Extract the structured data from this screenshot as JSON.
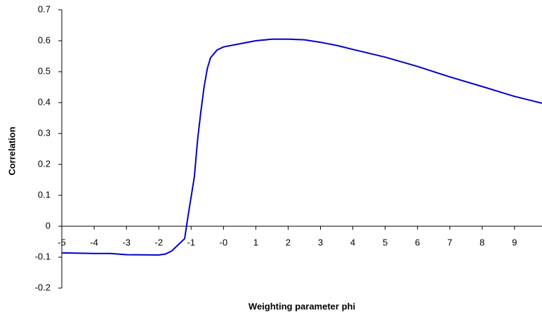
{
  "chart_data": {
    "type": "line",
    "x_label": "Weighting parameter phi",
    "y_label": "Correlation",
    "series": [
      {
        "name": "Correlation",
        "color": "#0000cc",
        "x": [
          -5,
          -4,
          -3.5,
          -3,
          -2,
          -1.8,
          -1.6,
          -1.4,
          -1.2,
          -1.1,
          -1,
          -0.9,
          -0.8,
          -0.7,
          -0.6,
          -0.5,
          -0.4,
          -0.2,
          0,
          0.5,
          1,
          1.5,
          2,
          2.5,
          3,
          3.5,
          4,
          5,
          6,
          7,
          8,
          9,
          9.85
        ],
        "values": [
          -0.086,
          -0.088,
          -0.088,
          -0.092,
          -0.093,
          -0.09,
          -0.08,
          -0.06,
          -0.04,
          0.03,
          0.095,
          0.16,
          0.28,
          0.37,
          0.45,
          0.51,
          0.545,
          0.57,
          0.58,
          0.59,
          0.6,
          0.605,
          0.605,
          0.603,
          0.595,
          0.585,
          0.572,
          0.547,
          0.517,
          0.483,
          0.452,
          0.42,
          0.398
        ]
      }
    ],
    "xlim": [
      -5,
      9.85
    ],
    "ylim": [
      -0.2,
      0.7
    ],
    "xticks": [
      -5,
      -4,
      -3,
      -2,
      -1,
      {
        "value": 0,
        "label": "-0"
      },
      1,
      2,
      3,
      4,
      5,
      6,
      7,
      8,
      9
    ],
    "yticks": [
      -0.2,
      -0.1,
      0,
      0.1,
      0.2,
      0.3,
      0.4,
      0.5,
      0.6,
      0.7
    ]
  }
}
